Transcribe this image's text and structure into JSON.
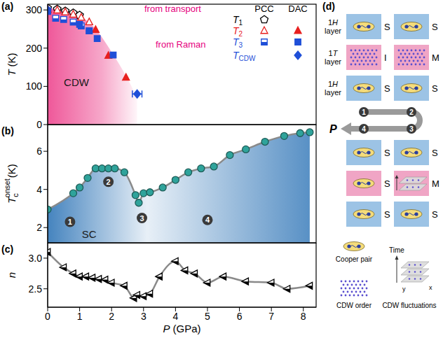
{
  "chart_data": [
    {
      "panel": "(a)",
      "type": "scatter",
      "ylabel": {
        "symbol": "T",
        "unit": "(K)"
      },
      "xlim": [
        0,
        8.4
      ],
      "xticks": [
        0,
        1,
        2,
        3,
        4,
        5,
        6,
        7,
        8
      ],
      "ylim": [
        0,
        315
      ],
      "yticks": [
        0,
        100,
        200,
        300
      ],
      "tick_labels": "y",
      "legend": "upper right",
      "shade": {
        "color": "#ee4f94",
        "x": [
          0,
          0.5,
          1.0,
          1.5,
          2.0,
          2.5,
          2.8
        ],
        "values": [
          305,
          298,
          285,
          250,
          190,
          120,
          70
        ]
      },
      "annotations": [
        {
          "text": "CDW",
          "x": 0.9,
          "y": 110
        }
      ],
      "legend_groups": [
        {
          "title": "from transport",
          "columns": [
            "PCC",
            "DAC"
          ]
        },
        {
          "title": "from Raman",
          "columns": []
        }
      ],
      "series": [
        {
          "name": "T1",
          "group": "from transport",
          "column": "PCC",
          "color": "#000000",
          "marker": "open-pentagon",
          "x": [
            0,
            0.3,
            0.55,
            0.8,
            1.0
          ],
          "values": [
            305,
            302,
            297,
            292,
            286
          ]
        },
        {
          "name": "T2",
          "group": "from transport",
          "column": "PCC",
          "color": "#e8201f",
          "marker": "open-triangle",
          "x": [
            0,
            0.3,
            0.55,
            0.8,
            1.05,
            1.3
          ],
          "values": [
            302,
            299,
            294,
            288,
            280,
            268
          ]
        },
        {
          "name": "T2",
          "group": "from transport",
          "column": "DAC",
          "color": "#e8201f",
          "marker": "filled-triangle",
          "x": [
            0,
            1.5,
            1.9,
            2.45
          ],
          "values": [
            300,
            248,
            180,
            123
          ]
        },
        {
          "name": "T3",
          "group": "from transport",
          "column": "PCC",
          "color": "#1f4fd8",
          "marker": "half-square",
          "x": [
            0,
            0.25,
            0.5,
            0.8,
            1.05,
            1.3
          ],
          "values": [
            296,
            278,
            275,
            268,
            258,
            245
          ]
        },
        {
          "name": "T3",
          "group": "from transport",
          "column": "DAC",
          "color": "#1f4fd8",
          "marker": "filled-square",
          "x": [
            0,
            1.0,
            1.3,
            1.55,
            2.05
          ],
          "values": [
            298,
            262,
            245,
            225,
            182
          ]
        },
        {
          "name": "TCDW",
          "group": "from Raman",
          "color": "#1f4fd8",
          "marker": "filled-diamond",
          "x": [
            0,
            2.8
          ],
          "values": [
            300,
            80
          ],
          "x_errors": [
            0,
            0.15
          ]
        }
      ]
    },
    {
      "panel": "(b)",
      "type": "line",
      "ylabel": {
        "symbol": "T",
        "sub": "c",
        "sup": "onset",
        "unit": "(K)"
      },
      "xlim": [
        0,
        8.4
      ],
      "xticks": [
        0,
        1,
        2,
        3,
        4,
        5,
        6,
        7,
        8
      ],
      "ylim": [
        1.2,
        7.4
      ],
      "yticks": [
        2,
        4,
        6
      ],
      "tick_labels": "y",
      "color": "#2fa39b",
      "marker": "filled-circle",
      "line_style": "solid",
      "shade": {
        "color": "#3b7dbb"
      },
      "x": [
        0,
        0.8,
        1.0,
        1.25,
        1.5,
        1.7,
        1.9,
        2.1,
        2.4,
        2.75,
        2.85,
        3.0,
        3.2,
        3.6,
        4.0,
        4.4,
        4.8,
        5.2,
        5.7,
        6.2,
        6.8,
        7.4,
        7.9,
        8.2
      ],
      "values": [
        2.95,
        3.8,
        4.1,
        4.6,
        5.1,
        5.1,
        5.1,
        5.1,
        4.9,
        3.7,
        3.3,
        3.8,
        3.85,
        4.1,
        4.5,
        4.9,
        5.1,
        5.2,
        5.8,
        6.1,
        6.5,
        6.8,
        6.95,
        7.0
      ],
      "annotations": [
        {
          "text": "1",
          "x": 0.7,
          "y": 2.3,
          "marker": "circle"
        },
        {
          "text": "2",
          "x": 1.9,
          "y": 4.4,
          "marker": "circle"
        },
        {
          "text": "3",
          "x": 2.95,
          "y": 2.5,
          "marker": "circle"
        },
        {
          "text": "4",
          "x": 5.0,
          "y": 2.4,
          "marker": "circle"
        },
        {
          "text": "SC",
          "x": 1.3,
          "y": 1.65
        }
      ]
    },
    {
      "panel": "(c)",
      "type": "line",
      "ylabel": {
        "symbol": "n"
      },
      "xlabel": {
        "symbol": "P",
        "unit": "(GPa)"
      },
      "xlim": [
        0,
        8.4
      ],
      "xticks": [
        0,
        1,
        2,
        3,
        4,
        5,
        6,
        7,
        8
      ],
      "ylim": [
        2.2,
        3.25
      ],
      "yticks": [
        2.5,
        {
          "value": 3,
          "label": "3.0"
        }
      ],
      "color": "#000000",
      "marker": "half-triangle-left",
      "line_style": "solid",
      "x": [
        0,
        0.5,
        0.8,
        1.0,
        1.2,
        1.4,
        1.6,
        1.8,
        2.0,
        2.4,
        2.7,
        2.8,
        3.0,
        3.2,
        3.5,
        4.0,
        4.3,
        4.6,
        5.0,
        5.5,
        6.2,
        7.0,
        7.5,
        8.2
      ],
      "values": [
        3.1,
        2.85,
        2.75,
        2.7,
        2.7,
        2.68,
        2.66,
        2.65,
        2.6,
        2.55,
        2.35,
        2.4,
        2.38,
        2.42,
        2.7,
        2.95,
        2.8,
        2.75,
        2.6,
        2.7,
        2.62,
        2.6,
        2.5,
        2.55
      ]
    }
  ],
  "diagram": {
    "panel": "(d)",
    "layer_labels": [
      "1H layer",
      "1T layer",
      "1H layer"
    ],
    "states": [
      {
        "step": "1",
        "layers": [
          "S",
          "I",
          "S"
        ],
        "middle": "CDW order"
      },
      {
        "step": "2",
        "layers": [
          "S",
          "M",
          "S"
        ],
        "middle": "CDW order"
      },
      {
        "step": "3",
        "layers": [
          "S",
          "M",
          "S"
        ],
        "middle": "CDW fluctuations"
      },
      {
        "step": "4",
        "layers": [
          "S",
          "S",
          "S"
        ],
        "middle": "Cooper pair"
      }
    ],
    "arrow_label": "P",
    "legend": [
      "Cooper pair",
      "CDW order",
      "CDW fluctuations"
    ],
    "axis_labels": {
      "time": "Time",
      "x": "x",
      "y": "y"
    }
  }
}
